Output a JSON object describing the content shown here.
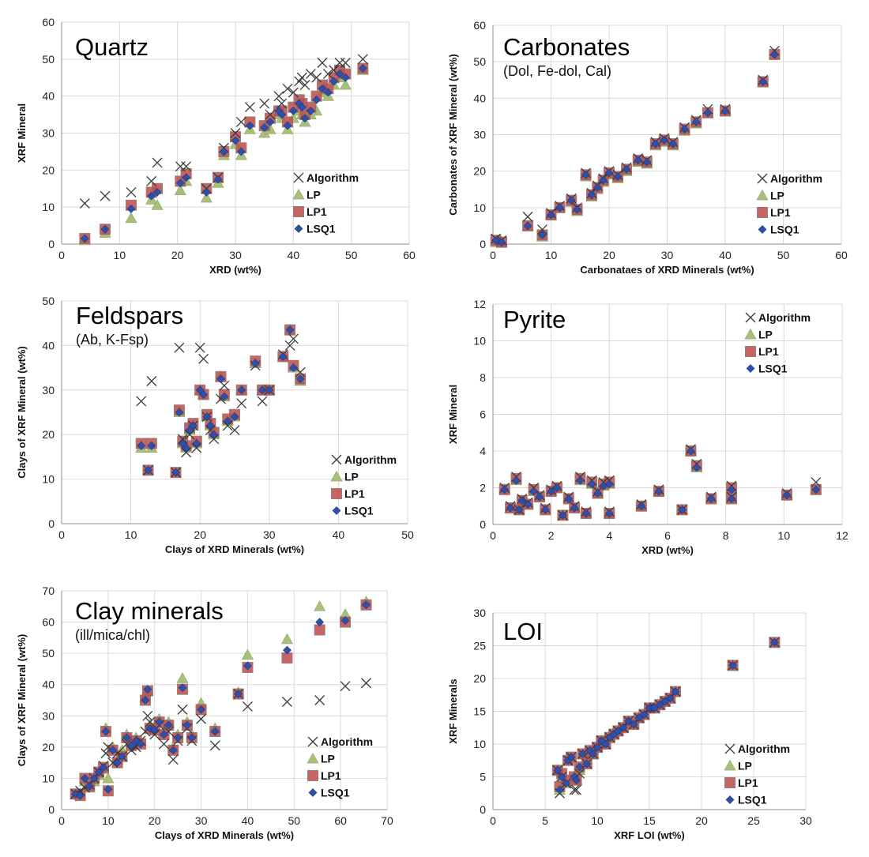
{
  "legend_labels": [
    "Algorithm",
    "LP",
    "LP1",
    "LSQ1"
  ],
  "colors": {
    "algorithm": "#3a3a3a",
    "lp": "#a9c07c",
    "lp1_fill": "#c0504d",
    "lp1_edge": "#8c6a6a",
    "lsq1": "#2f4fa8",
    "grid": "#d9d9d9"
  },
  "chart_data": [
    {
      "type": "scatter",
      "title": "Quartz",
      "subtitle": "",
      "xlabel": "XRD (wt%)",
      "ylabel": "XRF Mineral",
      "xlim": [
        0,
        60
      ],
      "ylim": [
        0,
        60
      ],
      "xticks": [
        0,
        10,
        20,
        30,
        40,
        50,
        60
      ],
      "yticks": [
        0,
        10,
        20,
        30,
        40,
        50,
        60
      ],
      "legend": "lower-right",
      "x": [
        4,
        7.5,
        12,
        15.5,
        16.5,
        20.5,
        21.5,
        25,
        27,
        28,
        30,
        31,
        32.5,
        35,
        36,
        37.5,
        38,
        39,
        40,
        41,
        41.5,
        42,
        43,
        44,
        45,
        46,
        47,
        48,
        49,
        52
      ],
      "alg": [
        11,
        13,
        14,
        17,
        22,
        21,
        21,
        15,
        18,
        26,
        30,
        33,
        37,
        38,
        35,
        40,
        38,
        42,
        41,
        44,
        45,
        43,
        46,
        45,
        49,
        46,
        47,
        49,
        49,
        50
      ],
      "lp": [
        1,
        3,
        7,
        12,
        10.5,
        14.5,
        17,
        12.5,
        16.5,
        24,
        27,
        24,
        31,
        30,
        31,
        35,
        34,
        31,
        34,
        36,
        35,
        33,
        35,
        36,
        41,
        40,
        43,
        45,
        43,
        47
      ],
      "lp1": [
        1.5,
        4,
        10.5,
        14,
        15,
        17,
        19,
        15,
        18,
        25,
        29,
        26,
        33,
        32,
        34,
        36,
        36,
        33,
        37,
        39,
        38,
        35,
        37,
        40,
        43,
        42,
        45,
        47,
        46,
        47.5
      ],
      "lsq1": [
        1.5,
        4,
        9.5,
        13,
        14,
        16.5,
        18,
        14,
        17.5,
        25,
        28,
        25,
        32,
        31.5,
        33,
        36,
        35,
        32,
        36,
        38,
        37,
        34,
        36,
        39,
        42,
        41,
        44,
        46,
        45,
        47.5
      ]
    },
    {
      "type": "scatter",
      "title": "Carbonates",
      "subtitle": "(Dol, Fe-dol, Cal)",
      "xlabel": "Carbonataes of XRD Minerals (wt%)",
      "ylabel": "Carbonates of XRF Mineral (wt%)",
      "xlim": [
        0,
        60
      ],
      "ylim": [
        0,
        60
      ],
      "xticks": [
        0,
        10,
        20,
        30,
        40,
        50,
        60
      ],
      "yticks": [
        0,
        10,
        20,
        30,
        40,
        50,
        60
      ],
      "legend": "lower-right",
      "x": [
        0.5,
        1.5,
        6,
        8.5,
        10,
        11.5,
        13.5,
        14.5,
        16,
        17,
        18,
        19,
        20,
        21.5,
        23,
        25,
        26.5,
        28,
        29.5,
        31,
        33,
        35,
        37,
        40,
        46.5,
        48.5
      ],
      "alg": [
        1.5,
        1,
        7.5,
        4,
        8.5,
        10.5,
        12.5,
        10,
        19.5,
        14,
        16,
        18,
        20,
        19,
        21,
        23.5,
        23,
        28,
        29,
        28,
        32,
        34,
        37,
        37,
        45,
        53
      ],
      "lp": [
        0.5,
        0.5,
        5,
        2,
        8,
        10,
        11.5,
        9,
        18.5,
        13,
        15,
        17,
        19,
        18,
        20,
        22.5,
        22,
        27,
        28,
        27,
        31,
        33,
        36,
        36.5,
        44.5,
        52
      ],
      "lp1": [
        1,
        0.5,
        5,
        2.5,
        8,
        10,
        12,
        9.5,
        19,
        13.5,
        15.5,
        17.5,
        19.5,
        18.5,
        20.5,
        23,
        22.5,
        27.5,
        28.5,
        27.5,
        31.5,
        33.5,
        36,
        36.5,
        44.5,
        52
      ],
      "lsq1": [
        1,
        0.5,
        5,
        2.5,
        8,
        10,
        12,
        9.5,
        19,
        13.5,
        15.5,
        17.5,
        19.5,
        18.5,
        20.5,
        23,
        22.5,
        27.5,
        28.5,
        27.5,
        31.5,
        33.5,
        36,
        36.5,
        44.5,
        52
      ]
    },
    {
      "type": "scatter",
      "title": "Feldspars",
      "subtitle": "(Ab, K-Fsp)",
      "xlabel": "Clays of XRD Minerals (wt%)",
      "ylabel": "Clays of XRF Mineral (wt%)",
      "xlim": [
        0,
        50
      ],
      "ylim": [
        0,
        50
      ],
      "xticks": [
        0,
        10,
        20,
        30,
        40,
        50
      ],
      "yticks": [
        0,
        10,
        20,
        30,
        40,
        50
      ],
      "legend": "lower-right",
      "x": [
        11.5,
        12.5,
        13,
        16.5,
        17,
        17.5,
        18,
        18.5,
        19,
        19.5,
        20,
        20.5,
        21,
        21.5,
        22,
        23,
        23.5,
        24,
        25,
        26,
        28,
        29,
        30,
        32,
        33,
        33.5,
        34.5
      ],
      "alg": [
        27.5,
        12,
        32,
        11.5,
        39.5,
        19,
        16,
        20,
        22,
        17,
        39.5,
        37,
        24,
        21,
        19,
        28,
        31,
        22,
        21,
        27,
        35.5,
        27.5,
        30,
        38,
        40,
        41.5,
        34
      ],
      "lp": [
        17,
        12,
        17,
        11.5,
        25,
        18,
        17,
        21,
        22,
        18,
        30,
        29,
        24,
        22,
        20,
        33,
        28.5,
        23,
        24,
        30,
        36,
        30,
        30,
        37.5,
        43.5,
        35,
        32
      ],
      "lp1": [
        18,
        12,
        18,
        11.5,
        25.5,
        18.5,
        17.5,
        21.5,
        22.5,
        18.5,
        30,
        29,
        24.5,
        22.5,
        20.5,
        33,
        29,
        23.5,
        24.5,
        30,
        36.5,
        30,
        30,
        37.5,
        43.5,
        35.5,
        32.5
      ],
      "lsq1": [
        17.5,
        12,
        17.5,
        11.5,
        25,
        18,
        17,
        21,
        22,
        18,
        30,
        29,
        24,
        22,
        20,
        32.5,
        28.5,
        23,
        24,
        30,
        36,
        30,
        30,
        37.5,
        43.5,
        35,
        32.5
      ]
    },
    {
      "type": "scatter",
      "title": "Pyrite",
      "subtitle": "",
      "xlabel": "XRD (wt%)",
      "ylabel": "XRF Mineral",
      "xlim": [
        0,
        12
      ],
      "ylim": [
        0,
        12
      ],
      "xticks": [
        0,
        2,
        4,
        6,
        8,
        10,
        12
      ],
      "yticks": [
        0,
        2,
        4,
        6,
        8,
        10,
        12
      ],
      "legend": "upper-right",
      "x": [
        0.4,
        0.6,
        0.8,
        0.9,
        1.0,
        1.2,
        1.4,
        1.6,
        1.8,
        2.0,
        2.2,
        2.4,
        2.6,
        2.8,
        3.0,
        3.2,
        3.4,
        3.6,
        3.8,
        4.0,
        4.0,
        5.1,
        5.7,
        6.5,
        6.8,
        7.0,
        7.5,
        8.2,
        8.2,
        10.1,
        11.1
      ],
      "alg": [
        2.0,
        1.0,
        2.6,
        0.8,
        1.4,
        1.2,
        2.0,
        1.6,
        0.9,
        1.9,
        2.1,
        0.5,
        1.5,
        1.0,
        2.6,
        0.7,
        2.4,
        1.8,
        2.3,
        2.4,
        0.7,
        1.1,
        1.9,
        0.8,
        4.1,
        3.3,
        1.5,
        2.1,
        1.5,
        1.7,
        2.3
      ],
      "lp": [
        1.9,
        0.9,
        2.4,
        0.8,
        1.3,
        1.1,
        1.8,
        1.5,
        0.8,
        1.8,
        2.0,
        0.5,
        1.4,
        0.9,
        2.4,
        0.6,
        2.2,
        1.7,
        2.1,
        2.2,
        0.6,
        1.0,
        1.8,
        0.8,
        4.0,
        3.1,
        1.4,
        1.9,
        1.4,
        1.6,
        1.9
      ],
      "lp1": [
        1.9,
        0.9,
        2.5,
        0.8,
        1.3,
        1.1,
        1.9,
        1.5,
        0.8,
        1.8,
        2.0,
        0.5,
        1.4,
        0.9,
        2.5,
        0.6,
        2.3,
        1.7,
        2.2,
        2.3,
        0.6,
        1.0,
        1.8,
        0.8,
        4.0,
        3.2,
        1.4,
        2.0,
        1.4,
        1.6,
        1.9
      ],
      "lsq1": [
        1.9,
        0.9,
        2.4,
        0.8,
        1.3,
        1.1,
        1.8,
        1.5,
        0.8,
        1.8,
        2.0,
        0.5,
        1.4,
        0.9,
        2.4,
        0.6,
        2.2,
        1.7,
        2.1,
        2.2,
        0.6,
        1.0,
        1.8,
        0.8,
        4.0,
        3.1,
        1.4,
        1.9,
        1.4,
        1.6,
        1.9
      ]
    },
    {
      "type": "scatter",
      "title": "Clay minerals",
      "subtitle": "(ill/mica/chl)",
      "xlabel": "Clays of XRD Minerals (wt%)",
      "ylabel": "Clays of XRF Mineral (wt%)",
      "xlim": [
        0,
        70
      ],
      "ylim": [
        0,
        70
      ],
      "xticks": [
        0,
        10,
        20,
        30,
        40,
        50,
        60,
        70
      ],
      "yticks": [
        0,
        10,
        20,
        30,
        40,
        50,
        60,
        70
      ],
      "legend": "lower-right",
      "x": [
        3,
        4,
        5,
        6,
        7,
        8,
        9,
        9.5,
        10,
        11,
        12,
        13,
        14,
        15,
        16,
        17,
        18,
        18.5,
        19,
        20,
        21,
        22,
        23,
        24,
        25,
        26,
        27,
        28,
        30,
        33,
        38,
        40,
        48.5,
        55.5,
        61,
        65.5
      ],
      "alg": [
        5,
        6,
        7,
        8,
        10,
        12,
        14,
        18,
        20,
        15,
        18,
        17,
        21,
        19,
        20,
        22,
        25,
        30,
        28,
        24,
        27,
        21,
        25,
        16,
        22,
        32,
        26,
        22,
        29,
        20.5,
        37,
        33,
        34.5,
        35,
        39.5,
        40.5
      ],
      "lp": [
        5,
        5,
        9,
        7,
        9,
        11,
        13,
        26,
        10,
        20,
        16,
        19,
        24,
        21,
        23,
        22,
        36,
        38,
        27,
        26,
        29,
        25,
        28,
        20,
        24,
        42,
        28,
        24,
        34,
        26,
        37.5,
        49.5,
        54.5,
        65,
        62.5,
        66.5
      ],
      "lp1": [
        5,
        4.5,
        10,
        7.5,
        10,
        12,
        13.5,
        25,
        6,
        19,
        15,
        17,
        23,
        20.5,
        22,
        21,
        35,
        38,
        26,
        25.5,
        28,
        24,
        27,
        19,
        23,
        38.5,
        27,
        23,
        32,
        25,
        37,
        45.5,
        48.5,
        57.5,
        60,
        65.5
      ],
      "lsq1": [
        5,
        4.5,
        10,
        7.5,
        10,
        12,
        13.5,
        25,
        6.5,
        19,
        15,
        17,
        23,
        20.5,
        22,
        21,
        35,
        38.5,
        26,
        25.5,
        28,
        24,
        27,
        19,
        23,
        39,
        27,
        23,
        32,
        25,
        37,
        46,
        51,
        60,
        60.5,
        65.5
      ]
    },
    {
      "type": "scatter",
      "title": "LOI",
      "subtitle": "",
      "xlabel": "XRF LOI (wt%)",
      "ylabel": "XRF Minerals",
      "xlim": [
        0,
        30
      ],
      "ylim": [
        0,
        30
      ],
      "xticks": [
        0,
        5,
        10,
        15,
        20,
        25,
        30
      ],
      "yticks": [
        0,
        5,
        10,
        15,
        20,
        25,
        30
      ],
      "legend": "lower-right",
      "x": [
        6.2,
        6.4,
        6.6,
        7.0,
        7.2,
        7.5,
        7.8,
        8.0,
        8.3,
        8.6,
        9.0,
        9.3,
        9.6,
        10.0,
        10.4,
        10.8,
        11.2,
        11.6,
        12.0,
        12.5,
        13.0,
        13.5,
        14.0,
        14.5,
        15.0,
        15.5,
        16.0,
        16.5,
        17.0,
        17.5,
        23.0,
        27.0
      ],
      "alg": [
        6.0,
        2.5,
        5.0,
        4.0,
        7.5,
        8.0,
        3.0,
        3.0,
        5.5,
        8.5,
        7.0,
        9.0,
        8.5,
        9.5,
        10.5,
        10.0,
        11.0,
        11.5,
        12.0,
        12.5,
        13.5,
        13.0,
        14.0,
        14.5,
        15.5,
        15.5,
        16.0,
        16.5,
        17.0,
        18.0,
        22.0,
        25.5
      ],
      "lp": [
        6.0,
        3.0,
        5.0,
        4.0,
        7.5,
        8.0,
        5.0,
        4.5,
        6.0,
        8.5,
        7.0,
        9.0,
        8.5,
        9.5,
        10.5,
        10.0,
        11.0,
        11.5,
        12.0,
        12.5,
        13.5,
        13.0,
        14.0,
        14.5,
        15.5,
        15.5,
        16.0,
        16.5,
        17.0,
        18.0,
        22.0,
        25.5
      ],
      "lp1": [
        6.0,
        3.5,
        5.5,
        4.5,
        7.5,
        8.0,
        5.0,
        4.5,
        6.5,
        8.5,
        7.0,
        9.0,
        8.5,
        9.5,
        10.5,
        10.0,
        11.0,
        11.5,
        12.0,
        12.5,
        13.5,
        13.0,
        14.0,
        14.5,
        15.5,
        15.5,
        16.0,
        16.5,
        17.0,
        18.0,
        22.0,
        25.5
      ],
      "lsq1": [
        6.0,
        3.0,
        5.0,
        4.0,
        7.5,
        8.0,
        5.0,
        4.5,
        6.5,
        8.5,
        7.0,
        9.0,
        8.5,
        9.5,
        10.5,
        10.0,
        11.0,
        11.5,
        12.0,
        12.5,
        13.5,
        13.0,
        14.0,
        14.5,
        15.5,
        15.5,
        16.0,
        16.5,
        17.0,
        18.0,
        22.0,
        25.5
      ]
    }
  ]
}
